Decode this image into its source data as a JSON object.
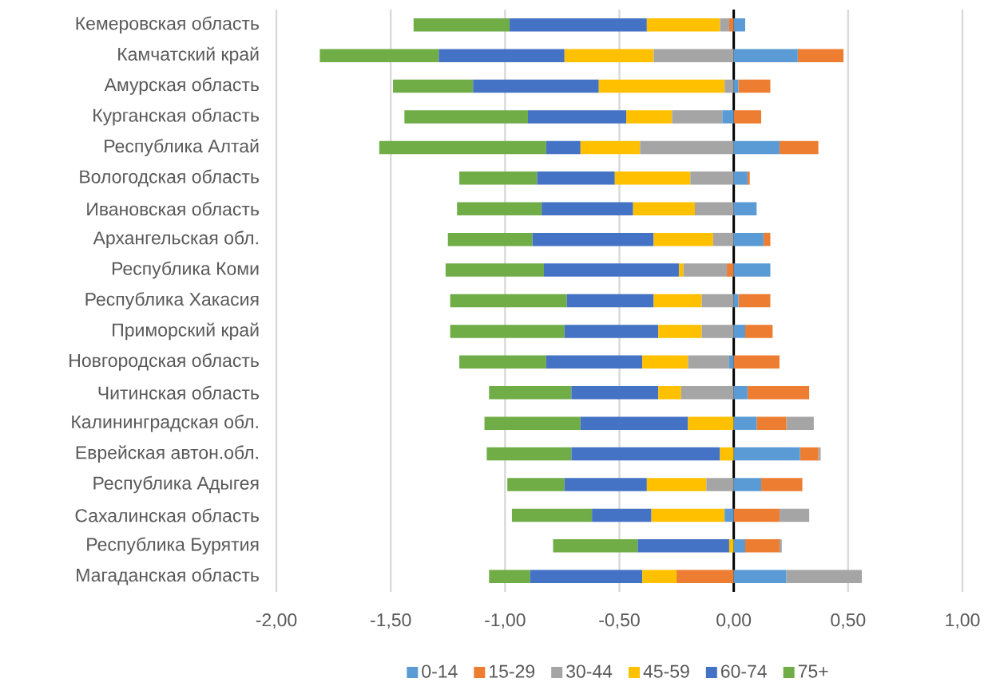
{
  "chart_data": {
    "type": "bar",
    "orientation": "horizontal",
    "stacked": true,
    "categories": [
      "Кемеровская область",
      "Камчатский край",
      "Амурская область",
      "Курганская область",
      "Республика Алтай",
      "Вологодская область",
      "Ивановская область",
      "Архангельская обл.",
      "Республика Коми",
      "Республика Хакасия",
      "Приморский край",
      "Новгородская область",
      "Читинская область",
      "Калининградская обл.",
      "Еврейская автон.обл.",
      "Республика Адыгея",
      "Сахалинская область",
      "Республика Бурятия",
      "Магаданская область"
    ],
    "series": [
      {
        "name": "0-14",
        "color": "#5b9bd5",
        "values": [
          0.05,
          0.28,
          0.02,
          -0.05,
          0.2,
          0.06,
          0.1,
          0.13,
          0.16,
          0.02,
          0.05,
          -0.02,
          0.06,
          0.1,
          0.29,
          0.12,
          -0.04,
          0.05,
          0.23
        ]
      },
      {
        "name": "15-29",
        "color": "#ed7d31",
        "values": [
          -0.02,
          0.2,
          0.14,
          0.12,
          0.17,
          0.01,
          0,
          0.03,
          -0.03,
          0.14,
          0.12,
          0.2,
          0.27,
          0.13,
          0.08,
          0.18,
          0.2,
          0.15,
          -0.25
        ]
      },
      {
        "name": "30-44",
        "color": "#a5a5a5",
        "values": [
          -0.04,
          -0.35,
          -0.04,
          -0.22,
          -0.41,
          -0.19,
          -0.17,
          -0.09,
          -0.19,
          -0.14,
          -0.14,
          -0.18,
          -0.23,
          0.12,
          0.01,
          -0.12,
          0.13,
          0.01,
          0.33
        ]
      },
      {
        "name": "45-59",
        "color": "#ffc000",
        "values": [
          -0.32,
          -0.39,
          -0.55,
          -0.2,
          -0.26,
          -0.33,
          -0.27,
          -0.26,
          -0.02,
          -0.21,
          -0.19,
          -0.2,
          -0.1,
          -0.2,
          -0.06,
          -0.26,
          -0.32,
          -0.02,
          -0.15
        ]
      },
      {
        "name": "60-74",
        "color": "#4472c4",
        "values": [
          -0.6,
          -0.55,
          -0.55,
          -0.43,
          -0.15,
          -0.34,
          -0.4,
          -0.53,
          -0.59,
          -0.38,
          -0.41,
          -0.42,
          -0.38,
          -0.47,
          -0.65,
          -0.36,
          -0.26,
          -0.4,
          -0.49
        ]
      },
      {
        "name": "75+",
        "color": "#70ad47",
        "values": [
          -0.42,
          -0.52,
          -0.35,
          -0.54,
          -0.73,
          -0.34,
          -0.37,
          -0.37,
          -0.43,
          -0.51,
          -0.5,
          -0.38,
          -0.36,
          -0.42,
          -0.37,
          -0.25,
          -0.35,
          -0.37,
          -0.18
        ]
      }
    ],
    "xlim": [
      -2,
      1
    ],
    "xticks": [
      {
        "value": -2,
        "label": "-2,00"
      },
      {
        "value": -1.5,
        "label": "-1,50"
      },
      {
        "value": -1,
        "label": "-1,00"
      },
      {
        "value": -0.5,
        "label": "-0,50"
      },
      {
        "value": 0,
        "label": "0,00"
      },
      {
        "value": 0.5,
        "label": "0,50"
      },
      {
        "value": 1,
        "label": "1,00"
      }
    ],
    "grid": "x",
    "legend": "bottom"
  }
}
